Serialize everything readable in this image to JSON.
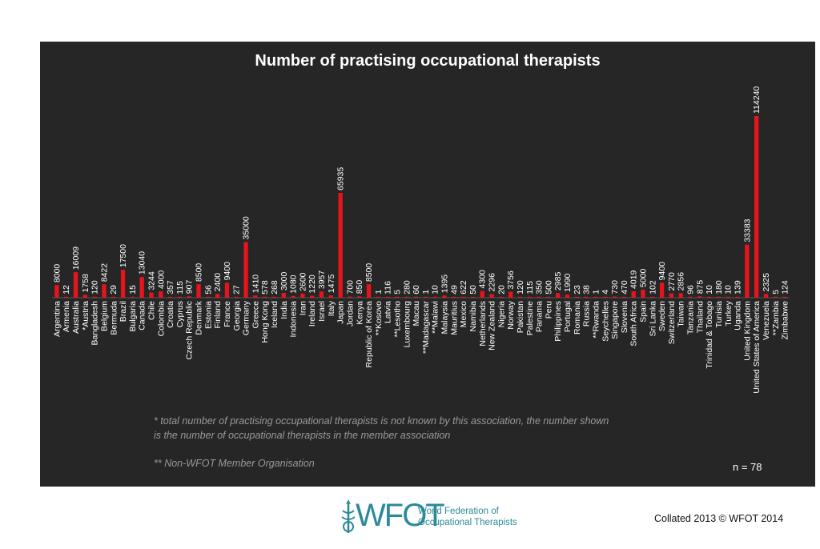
{
  "chart_data": {
    "type": "bar",
    "title": "Number of practising occupational therapists",
    "xlabel": "",
    "ylabel": "",
    "ylim": [
      0,
      114240
    ],
    "colors": {
      "bar": "#e8141c",
      "background": "#262626",
      "text": "#ffffff"
    },
    "categories": [
      "Argentina",
      "Armenia",
      "Australia",
      "*Austria",
      "Bangladesh",
      "Belgium",
      "Bermuda",
      "Brazil",
      "Bulgaria",
      "Canada",
      "Chile",
      "Colombia",
      "Croatia",
      "Cyprus",
      "Czech Republic",
      "Denmark",
      "Estonia",
      "Finland",
      "France",
      "Georgia",
      "Germany",
      "Greece",
      "Hong Kong",
      "Iceland",
      "India",
      "Indonesia",
      "Iran",
      "Ireland",
      "Israel",
      "Italy",
      "Japan",
      "Jordan",
      "Kenya",
      "Republic of Korea",
      "**Kosovo",
      "Latvia",
      "**Lesotho",
      "Luxembourg",
      "Macau",
      "**Madagascar",
      "**Malawi",
      "Malaysia",
      "Mauritius",
      "Mexico",
      "Namibia",
      "Netherlands",
      "New Zealand",
      "Nigeria",
      "Norway",
      "Pakistan",
      "Palestine",
      "Panama",
      "Peru",
      "Philippines",
      "Portugal",
      "Romania",
      "Russia",
      "**Rwanda",
      "Seychelles",
      "Singapore",
      "Slovenia",
      "South Africa",
      "Spain",
      "Sri Lanka",
      "Sweden",
      "Switzerland",
      "Taiwan",
      "Tanzania",
      "Thailand",
      "Trinidad & Tobago",
      "Tunisia",
      "Turkey",
      "Uganda",
      "United Kingdom",
      "United States of America",
      "Venezuela",
      "**Zambia",
      "Zimbabwe"
    ],
    "values": [
      8000,
      12,
      16009,
      1758,
      120,
      8422,
      29,
      17500,
      15,
      13040,
      3244,
      4000,
      357,
      115,
      907,
      8500,
      56,
      2400,
      9400,
      27,
      35000,
      1410,
      578,
      268,
      3000,
      1080,
      2600,
      1220,
      3957,
      1475,
      65935,
      700,
      850,
      8500,
      1,
      116,
      5,
      280,
      60,
      1,
      10,
      1395,
      49,
      622,
      50,
      4300,
      2296,
      20,
      3756,
      120,
      115,
      350,
      500,
      2985,
      1990,
      23,
      38,
      1,
      4,
      730,
      470,
      4019,
      5000,
      102,
      9400,
      2770,
      2856,
      96,
      875,
      10,
      180,
      10,
      139,
      33383,
      114240,
      2325,
      5,
      124
    ]
  },
  "notes": {
    "asterisk_line1": "* total number of practising occupational therapists is not known by this association,  the number shown",
    "asterisk_line2": "is the number of occupational therapists in  the member association",
    "double_asterisk": "** Non-WFOT Member Organisation",
    "n_count": "n = 78"
  },
  "footer": {
    "logo_word": "WFOT",
    "logo_tag_line1": "World Federation of",
    "logo_tag_line2": "Occupational Therapists",
    "collated": "Collated 2013 © WFOT 2014"
  }
}
